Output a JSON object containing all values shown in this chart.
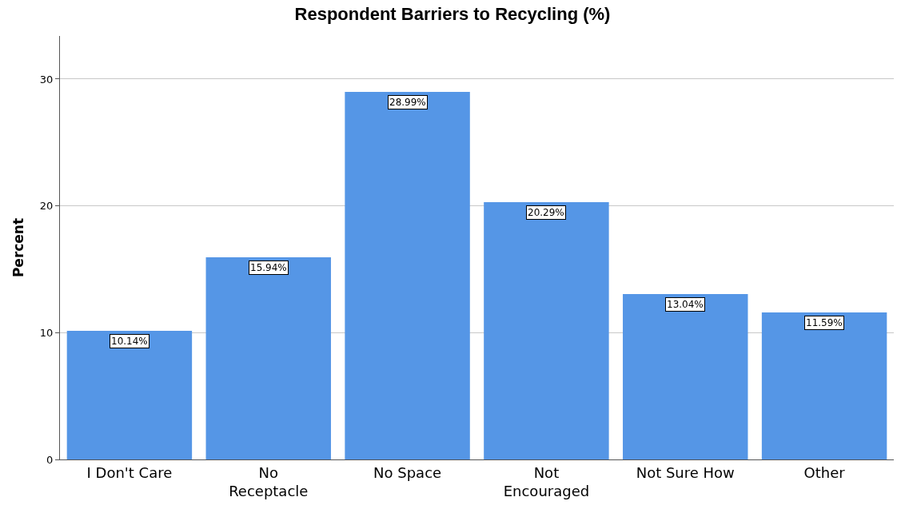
{
  "chart_data": {
    "type": "bar",
    "title": "Respondent Barriers to Recycling (%)",
    "ylabel": "Percent",
    "categories": [
      "I Don't Care",
      "No\nReceptacle",
      "No Space",
      "Not\nEncouraged",
      "Not Sure How",
      "Other"
    ],
    "values": [
      10.14,
      15.94,
      28.99,
      20.29,
      13.04,
      11.59
    ],
    "value_labels": [
      "10.14%",
      "15.94%",
      "28.99%",
      "20.29%",
      "13.04%",
      "11.59%"
    ],
    "color": "#5596e6",
    "ylim": [
      0,
      33.4
    ],
    "yticks": [
      0,
      10,
      20,
      30
    ],
    "grid": "y",
    "legend": false
  }
}
